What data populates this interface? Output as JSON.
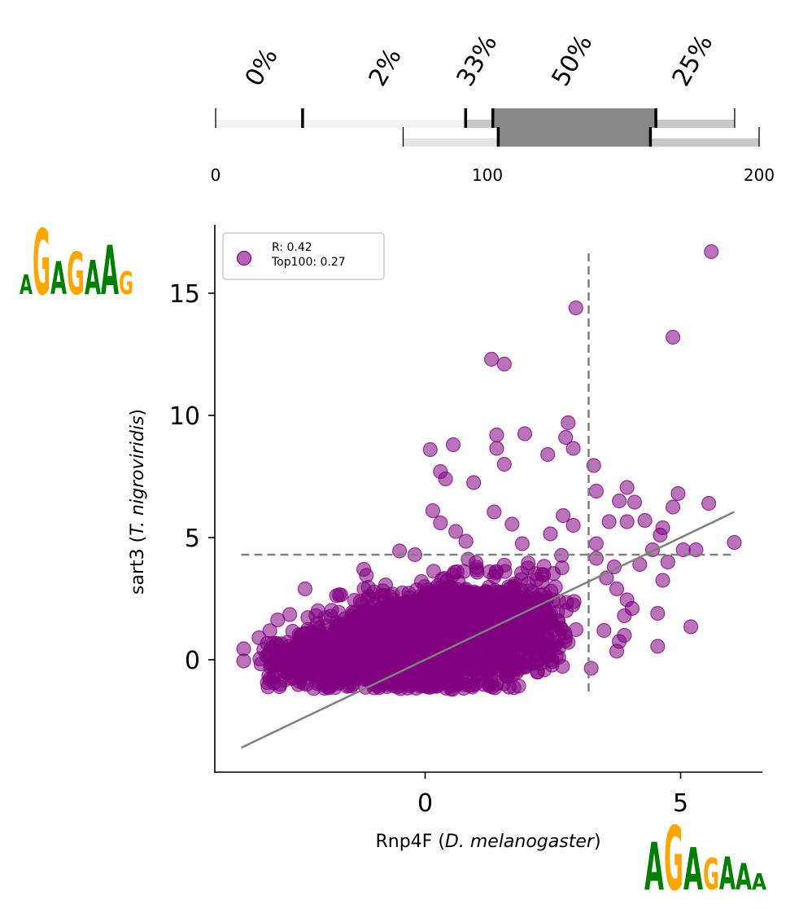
{
  "chart_data": {
    "type": "scatter",
    "xlabel": {
      "gene": "Rnp4F",
      "species": "D. melanogaster"
    },
    "ylabel": {
      "gene": "sart3",
      "species": "T. nigroviridis"
    },
    "xlim": [
      -4.1,
      6.6
    ],
    "ylim": [
      -4.6,
      17.8
    ],
    "xticks": [
      0,
      5
    ],
    "yticks": [
      0,
      5,
      10,
      15
    ],
    "grid": false,
    "legend": {
      "placement": "top-left",
      "lines": [
        "R: 0.42",
        "Top100: 0.27"
      ]
    },
    "colors": {
      "points": "#800080",
      "regression": "#808080",
      "threshold": "#808080"
    },
    "regression_line": {
      "x": [
        -3.6,
        6.05
      ],
      "y": [
        -3.6,
        6.05
      ]
    },
    "threshold_lines": {
      "x": 3.2,
      "y": 4.3
    },
    "outliers": [
      {
        "x": 5.6,
        "y": 16.7
      },
      {
        "x": 2.95,
        "y": 14.4
      },
      {
        "x": 4.85,
        "y": 13.2
      },
      {
        "x": 1.3,
        "y": 12.3
      },
      {
        "x": 1.55,
        "y": 12.1
      },
      {
        "x": 0.55,
        "y": 8.8
      },
      {
        "x": 0.1,
        "y": 8.6
      },
      {
        "x": 1.4,
        "y": 9.2
      },
      {
        "x": 1.95,
        "y": 9.25
      },
      {
        "x": 2.8,
        "y": 9.7
      },
      {
        "x": 2.75,
        "y": 9.1
      },
      {
        "x": 1.4,
        "y": 8.65
      },
      {
        "x": 2.4,
        "y": 8.4
      },
      {
        "x": 2.9,
        "y": 8.65
      },
      {
        "x": 0.3,
        "y": 7.7
      },
      {
        "x": 0.4,
        "y": 7.4
      },
      {
        "x": 1.55,
        "y": 8.0
      },
      {
        "x": 3.3,
        "y": 7.95
      },
      {
        "x": 0.95,
        "y": 7.25
      },
      {
        "x": 3.35,
        "y": 6.9
      },
      {
        "x": 3.8,
        "y": 6.5
      },
      {
        "x": 3.95,
        "y": 7.05
      },
      {
        "x": 4.1,
        "y": 6.45
      },
      {
        "x": 4.95,
        "y": 6.8
      },
      {
        "x": 5.55,
        "y": 6.4
      },
      {
        "x": 4.85,
        "y": 6.25
      },
      {
        "x": 4.3,
        "y": 5.7
      },
      {
        "x": 3.95,
        "y": 5.65
      },
      {
        "x": 4.45,
        "y": 4.5
      },
      {
        "x": 4.65,
        "y": 5.4
      },
      {
        "x": 4.6,
        "y": 5.1
      },
      {
        "x": 4.75,
        "y": 4.0
      },
      {
        "x": 5.05,
        "y": 4.5
      },
      {
        "x": 5.3,
        "y": 4.5
      },
      {
        "x": 6.05,
        "y": 4.8
      },
      {
        "x": 4.65,
        "y": 3.25
      },
      {
        "x": 5.2,
        "y": 1.35
      },
      {
        "x": 4.55,
        "y": 1.9
      },
      {
        "x": 4.55,
        "y": 0.55
      },
      {
        "x": 4.05,
        "y": 2.1
      },
      {
        "x": 3.95,
        "y": 2.45
      },
      {
        "x": 3.9,
        "y": 1.0
      },
      {
        "x": 4.2,
        "y": 3.9
      },
      {
        "x": 3.8,
        "y": 0.75
      },
      {
        "x": 0.15,
        "y": 6.1
      },
      {
        "x": 0.3,
        "y": 5.6
      },
      {
        "x": 0.6,
        "y": 5.25
      },
      {
        "x": 1.35,
        "y": 6.05
      },
      {
        "x": 1.7,
        "y": 5.55
      },
      {
        "x": 2.7,
        "y": 5.9
      },
      {
        "x": 2.9,
        "y": 5.5
      },
      {
        "x": 3.6,
        "y": 5.65
      },
      {
        "x": 3.35,
        "y": 4.75
      },
      {
        "x": 3.35,
        "y": 4.15
      },
      {
        "x": 3.7,
        "y": 3.8
      },
      {
        "x": 3.55,
        "y": 3.35
      },
      {
        "x": -2.35,
        "y": 2.9
      },
      {
        "x": -1.65,
        "y": 2.65
      },
      {
        "x": -1.15,
        "y": 3.45
      },
      {
        "x": -1.2,
        "y": 3.7
      },
      {
        "x": -2.65,
        "y": 1.85
      },
      {
        "x": -3.55,
        "y": 0.45
      },
      {
        "x": -3.55,
        "y": -0.05
      },
      {
        "x": -2.85,
        "y": -1.1
      },
      {
        "x": -3.25,
        "y": 0.9
      },
      {
        "x": -0.5,
        "y": 4.45
      },
      {
        "x": -0.2,
        "y": 4.3
      },
      {
        "x": 0.8,
        "y": 4.85
      },
      {
        "x": 1.9,
        "y": 4.75
      },
      {
        "x": 2.45,
        "y": 5.15
      },
      {
        "x": 3.75,
        "y": 2.9
      },
      {
        "x": 3.9,
        "y": 1.8
      },
      {
        "x": 3.5,
        "y": 1.2
      },
      {
        "x": 3.75,
        "y": 0.35
      },
      {
        "x": 3.25,
        "y": -0.35
      }
    ],
    "density_cloud": {
      "x_center": [
        -2.9,
        -2.2,
        -1.5,
        -0.8,
        -0.1,
        0.6,
        1.3,
        2.0,
        2.7,
        3.1
      ],
      "y_center": [
        0.0,
        0.15,
        0.35,
        0.55,
        0.8,
        1.0,
        1.15,
        1.3,
        1.5,
        1.6
      ],
      "y_spread": [
        0.9,
        1.05,
        1.25,
        1.45,
        1.65,
        1.75,
        1.75,
        1.7,
        1.55,
        1.35
      ]
    }
  },
  "top_panel": {
    "percent_labels": [
      "0%",
      "2%",
      "33%",
      "50%",
      "25%"
    ],
    "scale": {
      "min": 0,
      "max": 200,
      "ticks": [
        0,
        100,
        200
      ]
    },
    "upper_track": {
      "boundaries": [
        0,
        32,
        92,
        102,
        162,
        191
      ],
      "shades": [
        "#f2f2f2",
        "#f2f2f2",
        "#c9c9c9",
        "#888888",
        "#c9c9c9"
      ]
    },
    "lower_track": {
      "boundaries": [
        69,
        104,
        160,
        200
      ],
      "shades": [
        "#e6e6e6",
        "#888888",
        "#c9c9c9"
      ]
    }
  },
  "logos": {
    "y_motif": "AGAGAAG",
    "x_motif": "AGAGAAA",
    "colors": {
      "A": "#008000",
      "G": "#ffa500",
      "T": "#ff0000",
      "C": "#0000ff"
    }
  }
}
